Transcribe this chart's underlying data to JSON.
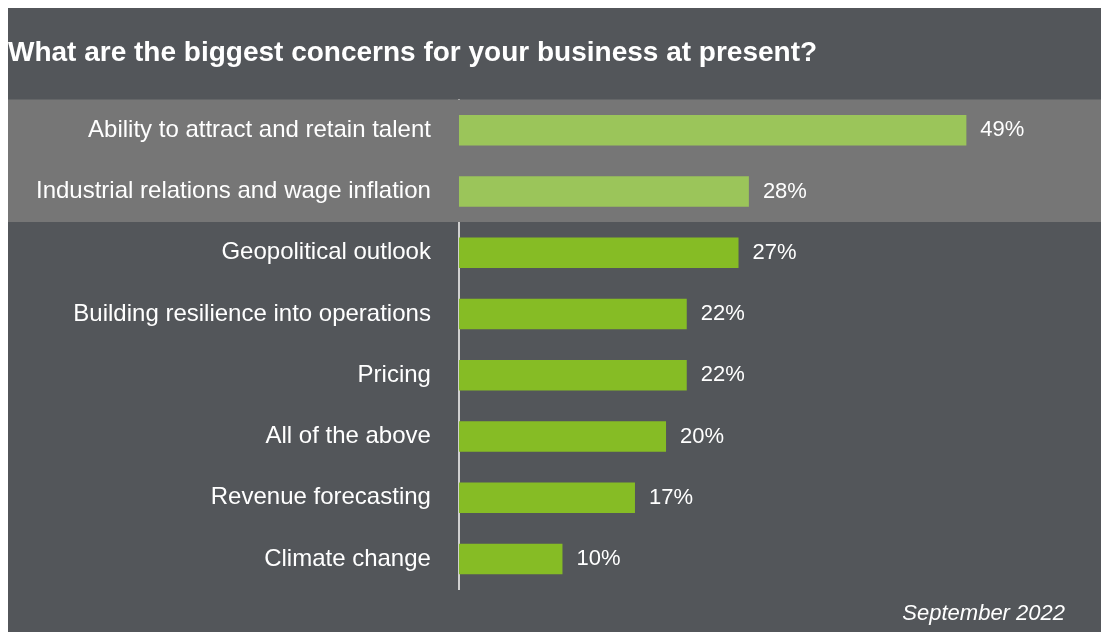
{
  "chart_data": {
    "type": "bar",
    "orientation": "horizontal",
    "title": "What are the biggest concerns for your business at present?",
    "categories": [
      "Ability to attract and retain talent",
      "Industrial relations and wage inflation",
      "Geopolitical outlook",
      "Building resilience into operations",
      "Pricing",
      "All of the above",
      "Revenue forecasting",
      "Climate change"
    ],
    "values": [
      49,
      28,
      27,
      22,
      22,
      20,
      17,
      10
    ],
    "colors": [
      "#9bc55a",
      "#9bc55a",
      "#86bc25",
      "#86bc25",
      "#86bc25",
      "#86bc25",
      "#86bc25",
      "#86bc25"
    ],
    "value_labels": [
      "49%",
      "28%",
      "27%",
      "22%",
      "22%",
      "20%",
      "17%",
      "10%"
    ],
    "xlim": [
      0,
      62
    ],
    "tick_labels": "y",
    "grid": false,
    "legend": false,
    "bands": [
      {
        "axis": "y",
        "from": "Ability to attract and retain talent",
        "to": "Industrial relations and wage inflation",
        "color": "#767676"
      }
    ],
    "annotations": [
      "September 2022"
    ]
  }
}
